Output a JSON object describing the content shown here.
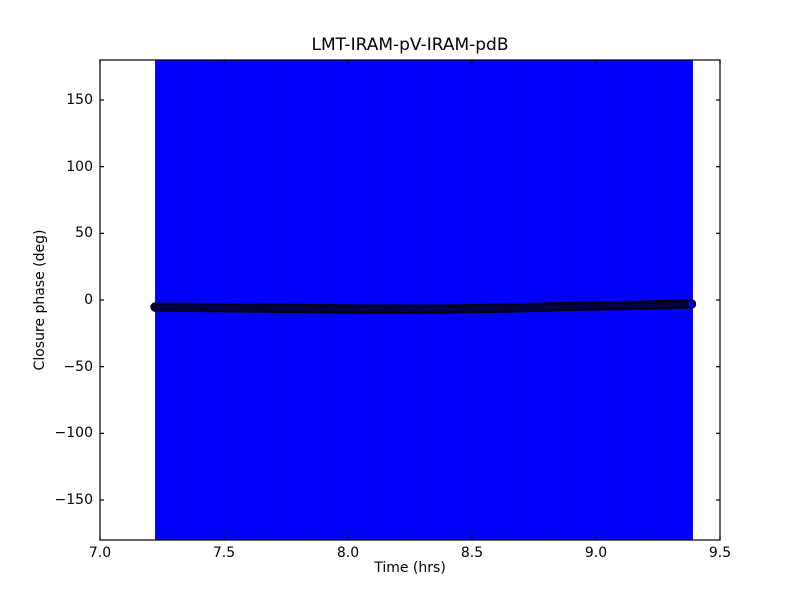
{
  "figure": {
    "background_color": "#ffffff",
    "frame_color": "#000000"
  },
  "chart_data": {
    "type": "scatter",
    "title": "LMT-IRAM-pV-IRAM-pdB",
    "xlabel": "Time (hrs)",
    "ylabel": "Closure phase (deg)",
    "xlim": [
      7.0,
      9.5
    ],
    "ylim": [
      -180,
      180
    ],
    "grid": false,
    "legend_position": "none",
    "xticks": [
      7.0,
      7.5,
      8.0,
      8.5,
      9.0,
      9.5
    ],
    "xtick_labels": [
      "7.0",
      "7.5",
      "8.0",
      "8.5",
      "9.0",
      "9.5"
    ],
    "yticks": [
      150,
      100,
      50,
      0,
      -50,
      -100,
      -150
    ],
    "ytick_labels": [
      "150",
      "100",
      "50",
      "0",
      "−50",
      "−100",
      "−150"
    ],
    "error_band": {
      "x0": 7.222,
      "x1": 9.391,
      "y0": -180,
      "y1": 180,
      "color": "#0000ff",
      "stripe_color": "#0000e6"
    },
    "series": [
      {
        "name": "closure-phase",
        "marker": "o",
        "marker_face": "#0000dd",
        "marker_edge": "#000018",
        "marker_edge_width": 1.5,
        "marker_radius": 4,
        "n_markers": 265,
        "points": [
          [
            7.222,
            -5.3
          ],
          [
            7.45,
            -5.7
          ],
          [
            7.75,
            -6.2
          ],
          [
            8.05,
            -6.8
          ],
          [
            8.35,
            -6.9
          ],
          [
            8.65,
            -6.0
          ],
          [
            8.95,
            -4.6
          ],
          [
            9.15,
            -4.0
          ],
          [
            9.385,
            -3.0
          ]
        ]
      }
    ]
  }
}
